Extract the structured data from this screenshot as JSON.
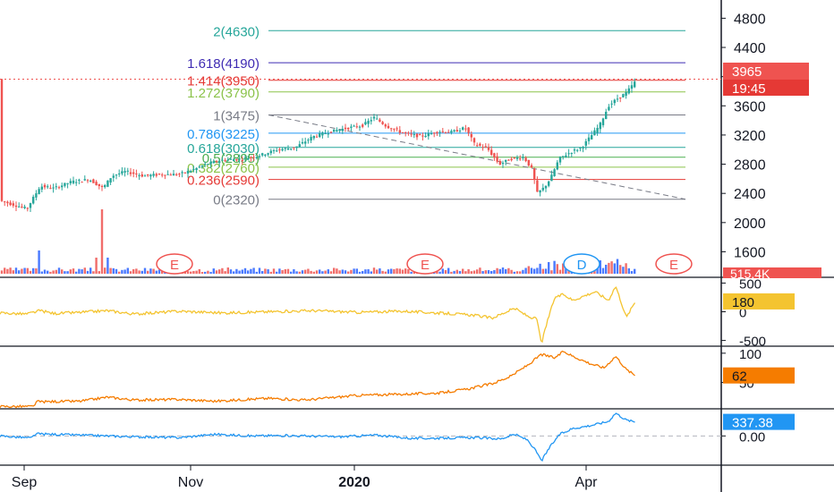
{
  "chart_data": {
    "type": "line",
    "x_ticks": [
      "Sep",
      "Nov",
      "2020",
      "Apr"
    ],
    "main": {
      "series": "candlestick",
      "y_ticks": [
        4800,
        4400,
        4000,
        3600,
        3200,
        2800,
        2400,
        2000,
        1600
      ],
      "ylim": [
        1250,
        5050
      ],
      "last_price": "3965",
      "countdown": "19:45",
      "fib_levels": [
        {
          "label": "2(4630)",
          "value": 4630,
          "color": "#26a69a"
        },
        {
          "label": "1.618(4190)",
          "value": 4190,
          "color": "#3f2bb3"
        },
        {
          "label": "1.414(3950)",
          "value": 3950,
          "color": "#e53935"
        },
        {
          "label": "1.272(3790)",
          "value": 3790,
          "color": "#8bc34a"
        },
        {
          "label": "1(3475)",
          "value": 3475,
          "color": "#787b86"
        },
        {
          "label": "0.786(3225)",
          "value": 3225,
          "color": "#2196f3"
        },
        {
          "label": "0.618(3030)",
          "value": 3030,
          "color": "#26a69a"
        },
        {
          "label": "0.5(2895)",
          "value": 2895,
          "color": "#4caf50"
        },
        {
          "label": "0.382(2760)",
          "value": 2760,
          "color": "#8bc34a"
        },
        {
          "label": "0.236(2590)",
          "value": 2590,
          "color": "#e53935"
        },
        {
          "label": "0(2320)",
          "value": 2320,
          "color": "#787b86"
        }
      ],
      "price_path": [
        [
          0,
          2300
        ],
        [
          30,
          2190
        ],
        [
          45,
          2500
        ],
        [
          60,
          2470
        ],
        [
          80,
          2560
        ],
        [
          100,
          2590
        ],
        [
          115,
          2470
        ],
        [
          125,
          2640
        ],
        [
          140,
          2700
        ],
        [
          160,
          2640
        ],
        [
          180,
          2660
        ],
        [
          200,
          2660
        ],
        [
          215,
          2720
        ],
        [
          230,
          2800
        ],
        [
          250,
          2860
        ],
        [
          270,
          2870
        ],
        [
          290,
          2920
        ],
        [
          310,
          3000
        ],
        [
          330,
          3030
        ],
        [
          350,
          3180
        ],
        [
          370,
          3250
        ],
        [
          390,
          3300
        ],
        [
          405,
          3330
        ],
        [
          418,
          3440
        ],
        [
          432,
          3320
        ],
        [
          450,
          3230
        ],
        [
          470,
          3180
        ],
        [
          490,
          3250
        ],
        [
          505,
          3240
        ],
        [
          520,
          3300
        ],
        [
          530,
          3080
        ],
        [
          545,
          3010
        ],
        [
          558,
          2800
        ],
        [
          570,
          2870
        ],
        [
          585,
          2900
        ],
        [
          595,
          2720
        ],
        [
          600,
          2400
        ],
        [
          608,
          2480
        ],
        [
          615,
          2600
        ],
        [
          625,
          2880
        ],
        [
          640,
          2980
        ],
        [
          650,
          3030
        ],
        [
          660,
          3180
        ],
        [
          670,
          3330
        ],
        [
          680,
          3600
        ],
        [
          690,
          3700
        ],
        [
          700,
          3780
        ],
        [
          712,
          3965
        ]
      ],
      "event_markers": [
        {
          "letter": "E",
          "border": "#ef5350"
        },
        {
          "letter": "E",
          "border": "#ef5350"
        },
        {
          "letter": "D",
          "border": "#2196f3"
        },
        {
          "letter": "E",
          "border": "#ef5350"
        }
      ],
      "volume_label": "515.4K"
    },
    "indicator_1": {
      "color": "#f4c430",
      "y_ticks": [
        500,
        0,
        -500
      ],
      "ylim": [
        -600,
        600
      ],
      "last_value": "180",
      "path": [
        [
          0,
          -20
        ],
        [
          30,
          -40
        ],
        [
          45,
          20
        ],
        [
          60,
          -30
        ],
        [
          90,
          -10
        ],
        [
          120,
          20
        ],
        [
          150,
          -40
        ],
        [
          200,
          10
        ],
        [
          250,
          -20
        ],
        [
          300,
          0
        ],
        [
          350,
          20
        ],
        [
          400,
          -10
        ],
        [
          450,
          10
        ],
        [
          500,
          -30
        ],
        [
          530,
          -60
        ],
        [
          550,
          -110
        ],
        [
          575,
          60
        ],
        [
          590,
          -80
        ],
        [
          600,
          -130
        ],
        [
          605,
          -560
        ],
        [
          612,
          -150
        ],
        [
          620,
          250
        ],
        [
          630,
          300
        ],
        [
          640,
          200
        ],
        [
          650,
          260
        ],
        [
          665,
          350
        ],
        [
          680,
          200
        ],
        [
          688,
          450
        ],
        [
          700,
          -100
        ],
        [
          710,
          180
        ]
      ]
    },
    "indicator_2": {
      "color": "#f57c00",
      "y_ticks": [
        100,
        50
      ],
      "ylim": [
        5,
        112
      ],
      "last_value": "62",
      "path": [
        [
          0,
          9
        ],
        [
          38,
          9
        ],
        [
          40,
          17
        ],
        [
          90,
          18
        ],
        [
          120,
          25
        ],
        [
          150,
          20
        ],
        [
          200,
          21
        ],
        [
          240,
          18
        ],
        [
          300,
          23
        ],
        [
          340,
          20
        ],
        [
          400,
          28
        ],
        [
          450,
          30
        ],
        [
          490,
          32
        ],
        [
          520,
          38
        ],
        [
          550,
          48
        ],
        [
          570,
          60
        ],
        [
          590,
          80
        ],
        [
          605,
          98
        ],
        [
          620,
          92
        ],
        [
          630,
          103
        ],
        [
          640,
          95
        ],
        [
          660,
          82
        ],
        [
          675,
          75
        ],
        [
          688,
          95
        ],
        [
          700,
          72
        ],
        [
          710,
          62
        ]
      ]
    },
    "indicator_3": {
      "color": "#2196f3",
      "y_ticks": [
        0.0
      ],
      "ylim": [
        -700,
        650
      ],
      "last_value": "337.38",
      "path": [
        [
          0,
          0
        ],
        [
          35,
          -50
        ],
        [
          40,
          50
        ],
        [
          90,
          20
        ],
        [
          150,
          -20
        ],
        [
          200,
          -40
        ],
        [
          240,
          40
        ],
        [
          280,
          0
        ],
        [
          320,
          10
        ],
        [
          380,
          -20
        ],
        [
          420,
          20
        ],
        [
          460,
          -60
        ],
        [
          500,
          -50
        ],
        [
          530,
          -40
        ],
        [
          560,
          -70
        ],
        [
          575,
          40
        ],
        [
          590,
          -100
        ],
        [
          600,
          -400
        ],
        [
          605,
          -600
        ],
        [
          615,
          -250
        ],
        [
          625,
          30
        ],
        [
          640,
          180
        ],
        [
          660,
          250
        ],
        [
          680,
          350
        ],
        [
          688,
          550
        ],
        [
          700,
          380
        ],
        [
          710,
          337
        ]
      ]
    }
  }
}
